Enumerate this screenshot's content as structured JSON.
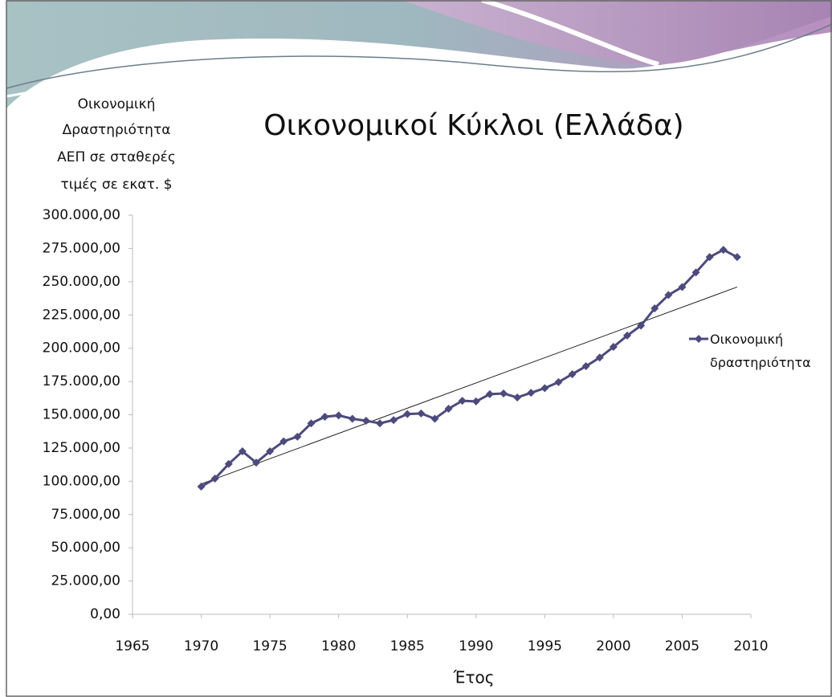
{
  "chart_data": {
    "type": "line",
    "title": "Οικονομικοί Κύκλοι (Ελλάδα)",
    "ylabel": [
      "Οικονομική",
      "Δραστηριότητα",
      "ΑΕΠ σε σταθερές",
      "τιμές σε εκατ. $"
    ],
    "xlabel": "Έτος",
    "x": [
      1970,
      1971,
      1972,
      1973,
      1974,
      1975,
      1976,
      1977,
      1978,
      1979,
      1980,
      1981,
      1982,
      1983,
      1984,
      1985,
      1986,
      1987,
      1988,
      1989,
      1990,
      1991,
      1992,
      1993,
      1994,
      1995,
      1996,
      1997,
      1998,
      1999,
      2000,
      2001,
      2002,
      2003,
      2004,
      2005,
      2006,
      2007,
      2008,
      2009
    ],
    "series": [
      {
        "name": "Οικονομική δραστηριότητα",
        "color": "#4d4b7c",
        "values": [
          96000,
          102000,
          113000,
          122500,
          114000,
          122500,
          130000,
          133500,
          143500,
          148500,
          149500,
          147000,
          145500,
          143500,
          146000,
          150500,
          151000,
          147000,
          154500,
          160500,
          160000,
          165500,
          166000,
          163000,
          166500,
          170000,
          174500,
          180500,
          186500,
          193000,
          201000,
          209500,
          217000,
          230000,
          240000,
          246000,
          257000,
          268500,
          274000,
          268500
        ]
      }
    ],
    "trendline": {
      "x": [
        1970,
        2009
      ],
      "values": [
        98000,
        246000
      ],
      "color": "#222222"
    },
    "xlim": [
      1965,
      2010
    ],
    "xticks": [
      1965,
      1970,
      1975,
      1980,
      1985,
      1990,
      1995,
      2000,
      2005,
      2010
    ],
    "ylim": [
      0,
      300000
    ],
    "yticks": [
      {
        "value": 0,
        "label": "0,00"
      },
      {
        "value": 25000,
        "label": "25.000,00"
      },
      {
        "value": 50000,
        "label": "50.000,00"
      },
      {
        "value": 75000,
        "label": "75.000,00"
      },
      {
        "value": 100000,
        "label": "100.000,00"
      },
      {
        "value": 125000,
        "label": "125.000,00"
      },
      {
        "value": 150000,
        "label": "150.000,00"
      },
      {
        "value": 175000,
        "label": "175.000,00"
      },
      {
        "value": 200000,
        "label": "200.000,00"
      },
      {
        "value": 225000,
        "label": "225.000,00"
      },
      {
        "value": 250000,
        "label": "250.000,00"
      },
      {
        "value": 275000,
        "label": "275.000,00"
      },
      {
        "value": 300000,
        "label": "300.000,00"
      }
    ],
    "legend": "right"
  }
}
